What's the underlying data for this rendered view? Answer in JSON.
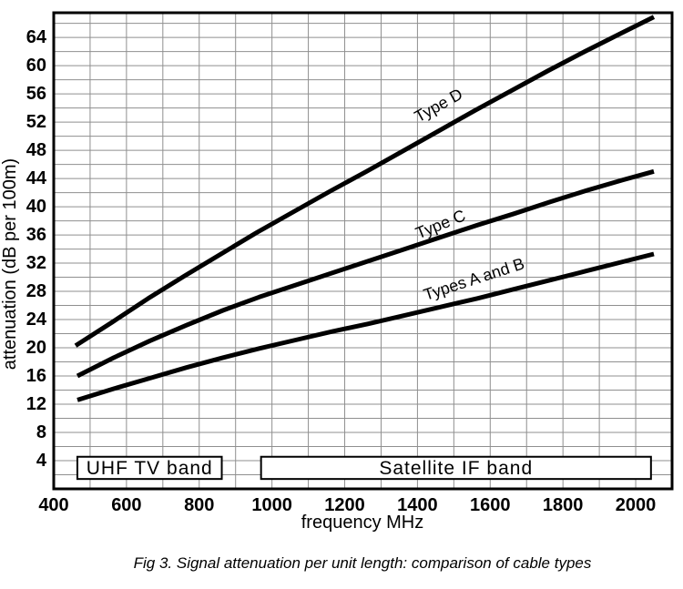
{
  "figure": {
    "caption": "Fig 3. Signal attenuation per unit length: comparison of cable types"
  },
  "chart_data": {
    "type": "line",
    "title": "",
    "xlabel": "frequency MHz",
    "ylabel": "attenuation (dB per 100m)",
    "xlim": [
      400,
      2100
    ],
    "ylim": [
      0,
      67.5
    ],
    "x_ticks": [
      400,
      600,
      800,
      1000,
      1200,
      1400,
      1600,
      1800,
      2000
    ],
    "y_ticks": [
      4,
      8,
      12,
      16,
      20,
      24,
      28,
      32,
      36,
      40,
      44,
      48,
      52,
      56,
      60,
      64
    ],
    "x_minor_step": 100,
    "y_minor_step": 2,
    "grid": true,
    "legend_position": "inline-labels",
    "series": [
      {
        "name": "Type D",
        "label": {
          "text": "Type D",
          "x_mhz": 1465,
          "y_db": 53.7,
          "angle": -29
        },
        "points": [
          [
            460,
            20.3
          ],
          [
            560,
            23.6
          ],
          [
            660,
            27.0
          ],
          [
            760,
            30.2
          ],
          [
            860,
            33.3
          ],
          [
            960,
            36.4
          ],
          [
            1060,
            39.3
          ],
          [
            1160,
            42.2
          ],
          [
            1260,
            45.0
          ],
          [
            1360,
            47.9
          ],
          [
            1460,
            50.8
          ],
          [
            1560,
            53.7
          ],
          [
            1660,
            56.5
          ],
          [
            1760,
            59.3
          ],
          [
            1860,
            62.0
          ],
          [
            1960,
            64.6
          ],
          [
            2050,
            66.9
          ]
        ]
      },
      {
        "name": "Type C",
        "label": {
          "text": "Type C",
          "x_mhz": 1469,
          "y_db": 36.8,
          "angle": -22
        },
        "points": [
          [
            465,
            16.0
          ],
          [
            565,
            18.6
          ],
          [
            665,
            21.0
          ],
          [
            765,
            23.2
          ],
          [
            865,
            25.3
          ],
          [
            965,
            27.2
          ],
          [
            1065,
            28.9
          ],
          [
            1165,
            30.6
          ],
          [
            1265,
            32.3
          ],
          [
            1365,
            34.0
          ],
          [
            1465,
            35.7
          ],
          [
            1565,
            37.4
          ],
          [
            1665,
            39.0
          ],
          [
            1765,
            40.7
          ],
          [
            1865,
            42.3
          ],
          [
            1965,
            43.8
          ],
          [
            2050,
            45.0
          ]
        ]
      },
      {
        "name": "Types A and B",
        "label": {
          "text": "Types A and B",
          "x_mhz": 1560,
          "y_db": 29.0,
          "angle": -18
        },
        "points": [
          [
            465,
            12.6
          ],
          [
            565,
            14.2
          ],
          [
            665,
            15.7
          ],
          [
            765,
            17.2
          ],
          [
            865,
            18.6
          ],
          [
            965,
            19.9
          ],
          [
            1065,
            21.1
          ],
          [
            1165,
            22.3
          ],
          [
            1265,
            23.4
          ],
          [
            1365,
            24.6
          ],
          [
            1465,
            25.8
          ],
          [
            1565,
            27.0
          ],
          [
            1665,
            28.3
          ],
          [
            1765,
            29.6
          ],
          [
            1865,
            30.9
          ],
          [
            1965,
            32.2
          ],
          [
            2050,
            33.3
          ]
        ]
      }
    ],
    "bands": [
      {
        "label": "UHF TV band",
        "from_mhz": 465,
        "to_mhz": 862,
        "top_db": 4.55,
        "bottom_db": 1.4
      },
      {
        "label": "Satellite IF band",
        "from_mhz": 970,
        "to_mhz": 2042,
        "top_db": 4.55,
        "bottom_db": 1.4
      }
    ],
    "colors": {
      "line": "#000000",
      "grid": "#8f8f8f",
      "frame": "#000000",
      "text": "#000000",
      "background": "#ffffff"
    }
  }
}
